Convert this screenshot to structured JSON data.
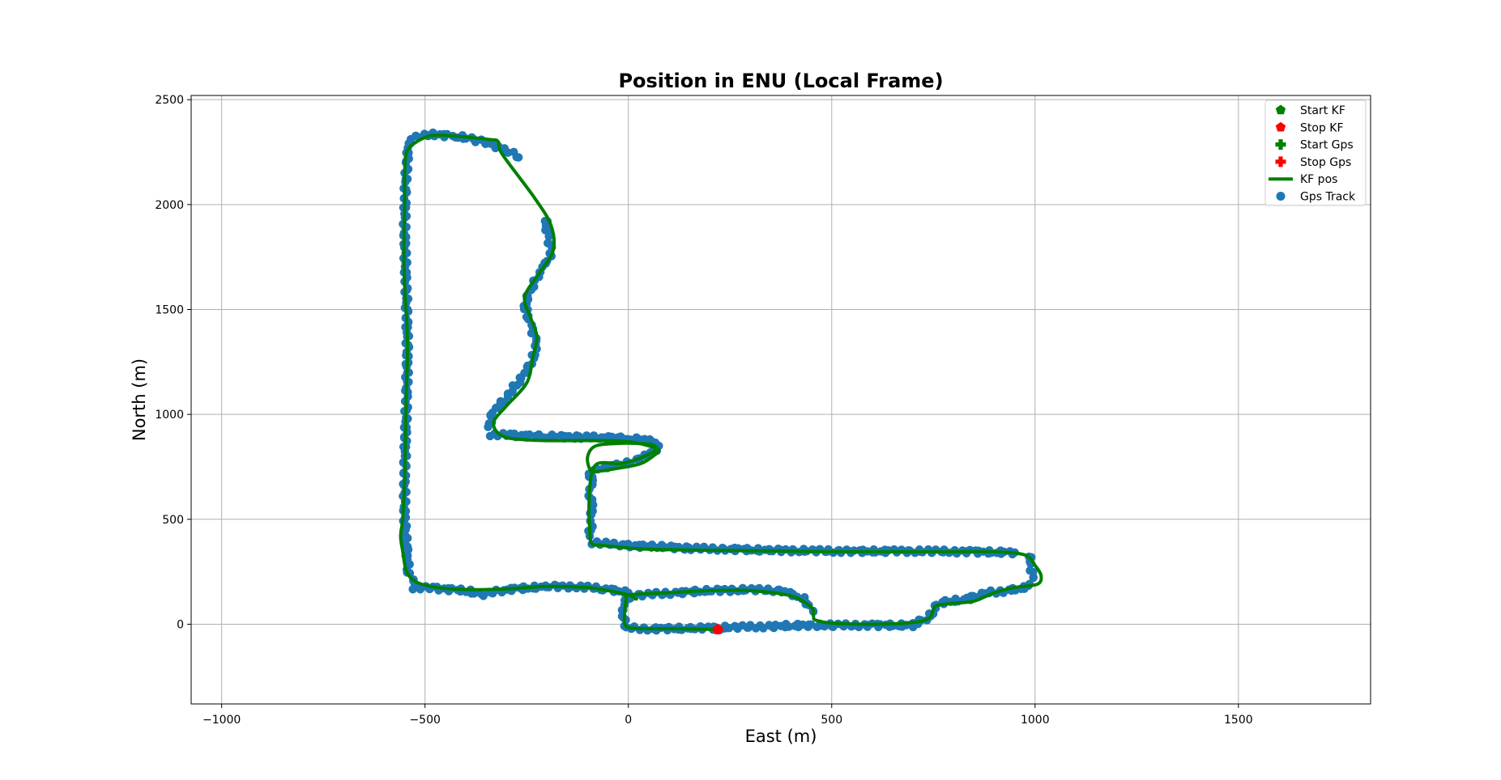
{
  "chart_data": {
    "type": "scatter",
    "title": "Position in ENU (Local Frame)",
    "xlabel": "East (m)",
    "ylabel": "North (m)",
    "xlim": [
      -1075,
      1825
    ],
    "ylim": [
      -380,
      2520
    ],
    "xticks": [
      -1000,
      -500,
      0,
      500,
      1000,
      1500
    ],
    "yticks": [
      0,
      500,
      1000,
      1500,
      2000,
      2500
    ],
    "xtick_labels": [
      "−1000",
      "−500",
      "0",
      "500",
      "1000",
      "1500"
    ],
    "ytick_labels": [
      "0",
      "500",
      "1000",
      "1500",
      "2000",
      "2500"
    ],
    "grid": true,
    "legend_position": "top-right",
    "colors": {
      "kf": "#008000",
      "gps": "#1f77b4",
      "stop": "#ff0000"
    },
    "legend": [
      {
        "label": "Start KF",
        "marker": "pentagon",
        "color": "#008000"
      },
      {
        "label": "Stop KF",
        "marker": "pentagon",
        "color": "#ff0000"
      },
      {
        "label": "Start Gps",
        "marker": "plus",
        "color": "#008000"
      },
      {
        "label": "Stop Gps",
        "marker": "plus",
        "color": "#ff0000"
      },
      {
        "label": "KF pos",
        "marker": "line",
        "color": "#008000"
      },
      {
        "label": "Gps Track",
        "marker": "circle",
        "color": "#1f77b4"
      }
    ],
    "markers": {
      "start_kf": [
        220,
        -25
      ],
      "stop_kf": [
        220,
        -25
      ],
      "start_gps": [
        220,
        -25
      ],
      "stop_gps": [
        220,
        -25
      ]
    },
    "kf_path": [
      [
        220,
        -25
      ],
      [
        120,
        -22
      ],
      [
        20,
        -20
      ],
      [
        -5,
        -10
      ],
      [
        -10,
        30
      ],
      [
        -5,
        125
      ],
      [
        0,
        140
      ],
      [
        100,
        150
      ],
      [
        200,
        160
      ],
      [
        300,
        160
      ],
      [
        400,
        135
      ],
      [
        450,
        80
      ],
      [
        455,
        40
      ],
      [
        460,
        20
      ],
      [
        500,
        5
      ],
      [
        600,
        0
      ],
      [
        700,
        8
      ],
      [
        740,
        30
      ],
      [
        750,
        70
      ],
      [
        760,
        90
      ],
      [
        800,
        100
      ],
      [
        850,
        110
      ],
      [
        900,
        150
      ],
      [
        950,
        175
      ],
      [
        1005,
        190
      ],
      [
        1015,
        230
      ],
      [
        1000,
        280
      ],
      [
        975,
        330
      ],
      [
        900,
        345
      ],
      [
        800,
        345
      ],
      [
        700,
        345
      ],
      [
        600,
        345
      ],
      [
        500,
        345
      ],
      [
        400,
        348
      ],
      [
        300,
        350
      ],
      [
        200,
        352
      ],
      [
        100,
        355
      ],
      [
        20,
        360
      ],
      [
        -60,
        375
      ],
      [
        -90,
        385
      ],
      [
        -95,
        450
      ],
      [
        -97,
        550
      ],
      [
        -95,
        650
      ],
      [
        -90,
        720
      ],
      [
        -80,
        760
      ],
      [
        -60,
        770
      ],
      [
        -20,
        765
      ],
      [
        20,
        785
      ],
      [
        50,
        810
      ],
      [
        70,
        835
      ],
      [
        60,
        855
      ],
      [
        40,
        860
      ],
      [
        -20,
        862
      ],
      [
        -80,
        850
      ],
      [
        -100,
        800
      ],
      [
        -95,
        740
      ],
      [
        -80,
        728
      ],
      [
        -20,
        745
      ],
      [
        30,
        765
      ],
      [
        60,
        800
      ],
      [
        75,
        830
      ],
      [
        50,
        850
      ],
      [
        0,
        870
      ],
      [
        -80,
        875
      ],
      [
        -200,
        875
      ],
      [
        -260,
        880
      ],
      [
        -300,
        890
      ],
      [
        -325,
        920
      ],
      [
        -330,
        970
      ],
      [
        -300,
        1040
      ],
      [
        -250,
        1150
      ],
      [
        -235,
        1270
      ],
      [
        -225,
        1370
      ],
      [
        -240,
        1460
      ],
      [
        -255,
        1560
      ],
      [
        -220,
        1670
      ],
      [
        -185,
        1780
      ],
      [
        -190,
        1900
      ],
      [
        -230,
        2030
      ],
      [
        -310,
        2240
      ],
      [
        -320,
        2300
      ],
      [
        -340,
        2310
      ],
      [
        -420,
        2325
      ],
      [
        -480,
        2330
      ],
      [
        -520,
        2300
      ],
      [
        -545,
        2250
      ],
      [
        -550,
        2150
      ],
      [
        -550,
        2000
      ],
      [
        -552,
        1800
      ],
      [
        -550,
        1600
      ],
      [
        -545,
        1450
      ],
      [
        -543,
        1300
      ],
      [
        -546,
        1100
      ],
      [
        -548,
        900
      ],
      [
        -550,
        700
      ],
      [
        -555,
        500
      ],
      [
        -560,
        420
      ],
      [
        -555,
        350
      ],
      [
        -545,
        250
      ],
      [
        -520,
        200
      ],
      [
        -470,
        175
      ],
      [
        -400,
        165
      ],
      [
        -300,
        168
      ],
      [
        -200,
        180
      ],
      [
        -100,
        175
      ],
      [
        -50,
        160
      ],
      [
        0,
        140
      ],
      [
        20,
        120
      ]
    ],
    "gps_segments": [
      {
        "name": "north-arc",
        "points": [
          [
            -535,
            2320
          ],
          [
            -480,
            2335
          ],
          [
            -420,
            2325
          ],
          [
            -380,
            2310
          ],
          [
            -340,
            2290
          ],
          [
            -300,
            2260
          ],
          [
            -270,
            2225
          ]
        ]
      },
      {
        "name": "west-edge",
        "points": [
          [
            -540,
            2300
          ],
          [
            -548,
            2100
          ],
          [
            -550,
            1900
          ],
          [
            -548,
            1700
          ],
          [
            -545,
            1500
          ],
          [
            -543,
            1300
          ],
          [
            -545,
            1100
          ],
          [
            -548,
            900
          ],
          [
            -550,
            700
          ],
          [
            -550,
            500
          ],
          [
            -545,
            350
          ],
          [
            -540,
            250
          ],
          [
            -525,
            190
          ]
        ]
      },
      {
        "name": "east-curve",
        "points": [
          [
            -205,
            1930
          ],
          [
            -195,
            1840
          ],
          [
            -190,
            1760
          ],
          [
            -210,
            1700
          ],
          [
            -240,
            1600
          ],
          [
            -255,
            1520
          ],
          [
            -240,
            1420
          ],
          [
            -225,
            1340
          ],
          [
            -235,
            1260
          ],
          [
            -260,
            1180
          ],
          [
            -300,
            1080
          ],
          [
            -335,
            1000
          ],
          [
            -345,
            940
          ]
        ]
      },
      {
        "name": "mid-road",
        "points": [
          [
            -340,
            905
          ],
          [
            -280,
            900
          ],
          [
            -200,
            895
          ],
          [
            -120,
            892
          ],
          [
            -60,
            890
          ],
          [
            0,
            885
          ],
          [
            50,
            875
          ],
          [
            75,
            850
          ]
        ]
      },
      {
        "name": "loop",
        "points": [
          [
            70,
            835
          ],
          [
            40,
            800
          ],
          [
            0,
            770
          ],
          [
            -40,
            755
          ],
          [
            -80,
            740
          ],
          [
            -95,
            720
          ],
          [
            -90,
            680
          ],
          [
            -95,
            620
          ],
          [
            -90,
            560
          ],
          [
            -90,
            500
          ],
          [
            -95,
            420
          ]
        ]
      },
      {
        "name": "east-road",
        "points": [
          [
            -90,
            390
          ],
          [
            0,
            375
          ],
          [
            70,
            370
          ],
          [
            150,
            362
          ],
          [
            250,
            358
          ],
          [
            350,
            352
          ],
          [
            450,
            350
          ],
          [
            550,
            348
          ],
          [
            650,
            348
          ],
          [
            750,
            348
          ],
          [
            850,
            345
          ],
          [
            950,
            342
          ]
        ]
      },
      {
        "name": "east-turn",
        "points": [
          [
            985,
            330
          ],
          [
            990,
            280
          ],
          [
            995,
            230
          ],
          [
            985,
            180
          ],
          [
            940,
            160
          ],
          [
            880,
            150
          ],
          [
            830,
            120
          ],
          [
            760,
            100
          ],
          [
            740,
            30
          ],
          [
            700,
            5
          ]
        ]
      },
      {
        "name": "south-road",
        "points": [
          [
            700,
            -5
          ],
          [
            600,
            -5
          ],
          [
            500,
            -5
          ],
          [
            430,
            -5
          ],
          [
            350,
            -10
          ],
          [
            250,
            -15
          ],
          [
            150,
            -20
          ],
          [
            50,
            -22
          ],
          [
            -5,
            -15
          ]
        ]
      },
      {
        "name": "south-stub",
        "points": [
          [
            -10,
            0
          ],
          [
            -12,
            60
          ],
          [
            -10,
            120
          ],
          [
            30,
            140
          ],
          [
            120,
            150
          ],
          [
            200,
            160
          ],
          [
            300,
            165
          ],
          [
            380,
            160
          ],
          [
            430,
            120
          ],
          [
            455,
            60
          ]
        ]
      },
      {
        "name": "south-west-road",
        "points": [
          [
            -530,
            175
          ],
          [
            -470,
            170
          ],
          [
            -400,
            160
          ],
          [
            -360,
            140
          ],
          [
            -300,
            165
          ],
          [
            -200,
            180
          ],
          [
            -120,
            178
          ],
          [
            -60,
            170
          ],
          [
            0,
            150
          ]
        ]
      }
    ]
  }
}
